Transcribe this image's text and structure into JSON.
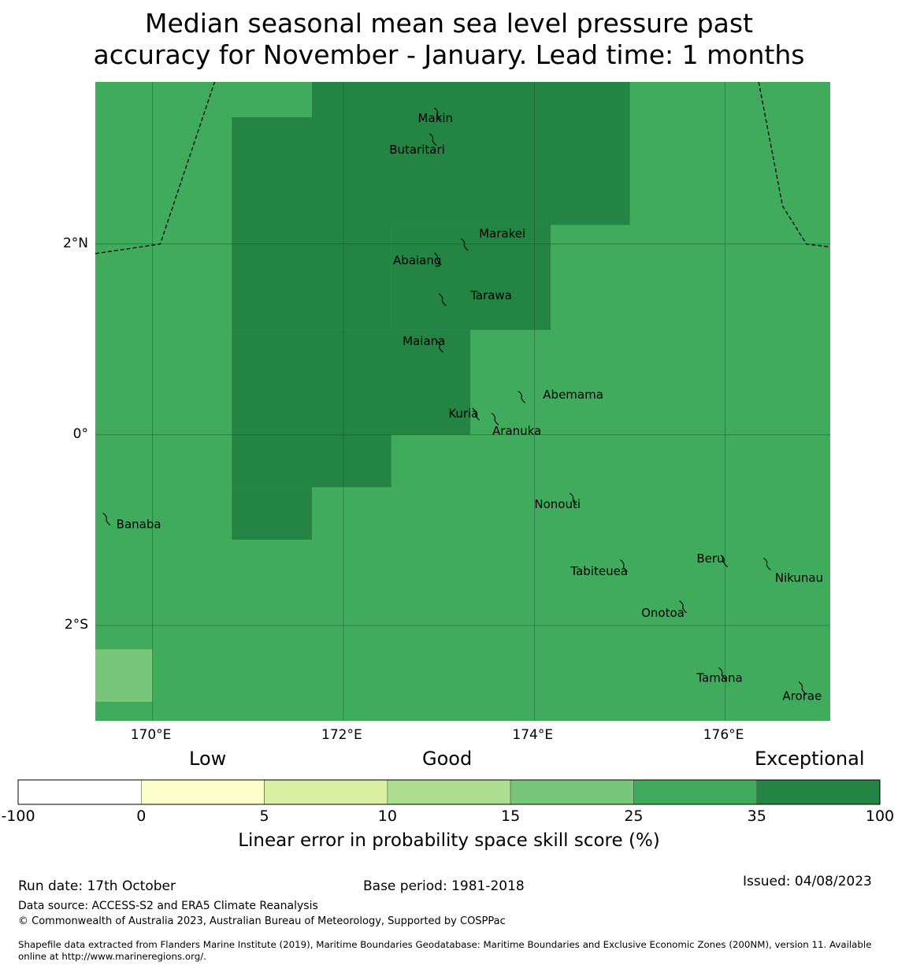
{
  "title": {
    "line1": "Median seasonal mean sea level pressure past",
    "line2": "accuracy for November - January. Lead time: 1 months"
  },
  "map": {
    "lon_range": [
      169.4,
      177.1
    ],
    "lat_range": [
      -3.0,
      3.7
    ],
    "lon_ticks": [
      170,
      172,
      174,
      176
    ],
    "lat_ticks": [
      2,
      0,
      -2
    ],
    "lon_tick_labels": [
      "170°E",
      "172°E",
      "174°E",
      "176°E"
    ],
    "lat_tick_labels": [
      "2°N",
      "0°",
      "2°S"
    ],
    "cell_scores": [
      {
        "lon": [
          169.4,
          177.1
        ],
        "lat": [
          -3.0,
          3.7
        ],
        "skill_pct": 30
      },
      {
        "lon": [
          170.83,
          172.5
        ],
        "lat": [
          1.1,
          3.33
        ],
        "skill_pct": 50
      },
      {
        "lon": [
          171.67,
          175.0
        ],
        "lat": [
          2.2,
          3.7
        ],
        "skill_pct": 50
      },
      {
        "lon": [
          172.5,
          174.17
        ],
        "lat": [
          1.1,
          2.2
        ],
        "skill_pct": 50
      },
      {
        "lon": [
          170.83,
          173.33
        ],
        "lat": [
          0.0,
          1.1
        ],
        "skill_pct": 50
      },
      {
        "lon": [
          170.83,
          172.5
        ],
        "lat": [
          -0.55,
          0.0
        ],
        "skill_pct": 50
      },
      {
        "lon": [
          170.83,
          171.67
        ],
        "lat": [
          -1.1,
          -0.55
        ],
        "skill_pct": 50
      },
      {
        "lon": [
          169.4,
          170.0
        ],
        "lat": [
          -2.8,
          -2.25
        ],
        "skill_pct": 20
      }
    ],
    "eez_boundaries": [
      [
        [
          169.4,
          1.9
        ],
        [
          170.08,
          2.0
        ],
        [
          170.65,
          3.7
        ]
      ],
      [
        [
          176.35,
          3.7
        ],
        [
          176.6,
          2.4
        ],
        [
          176.85,
          2.0
        ],
        [
          177.1,
          1.97
        ]
      ]
    ],
    "islands": [
      {
        "name": "Makin",
        "lon": 173.0,
        "lat": 3.37,
        "label_lon": 172.78,
        "label_lat": 3.32
      },
      {
        "name": "Butaritari",
        "lon": 172.95,
        "lat": 3.1,
        "label_lon": 172.48,
        "label_lat": 2.99
      },
      {
        "name": "Marakei",
        "lon": 173.28,
        "lat": 2.0,
        "label_lon": 173.42,
        "label_lat": 2.11
      },
      {
        "name": "Abaiang",
        "lon": 173.0,
        "lat": 1.85,
        "label_lon": 172.52,
        "label_lat": 1.83
      },
      {
        "name": "Tarawa",
        "lon": 173.05,
        "lat": 1.42,
        "label_lon": 173.33,
        "label_lat": 1.46
      },
      {
        "name": "Maiana",
        "lon": 173.02,
        "lat": 0.93,
        "label_lon": 172.62,
        "label_lat": 0.98
      },
      {
        "name": "Abemama",
        "lon": 173.88,
        "lat": 0.4,
        "label_lon": 174.09,
        "label_lat": 0.42
      },
      {
        "name": "Kuria",
        "lon": 173.4,
        "lat": 0.22,
        "label_lon": 173.1,
        "label_lat": 0.22
      },
      {
        "name": "Aranuka",
        "lon": 173.6,
        "lat": 0.17,
        "label_lon": 173.56,
        "label_lat": 0.04
      },
      {
        "name": "Nonouti",
        "lon": 174.42,
        "lat": -0.67,
        "label_lon": 174.0,
        "label_lat": -0.73
      },
      {
        "name": "Banaba",
        "lon": 169.53,
        "lat": -0.88,
        "label_lon": 169.62,
        "label_lat": -0.94
      },
      {
        "name": "Tabiteuea",
        "lon": 174.95,
        "lat": -1.37,
        "label_lon": 174.38,
        "label_lat": -1.43
      },
      {
        "name": "Beru",
        "lon": 176.0,
        "lat": -1.32,
        "label_lon": 175.7,
        "label_lat": -1.3
      },
      {
        "name": "Nikunau",
        "lon": 176.45,
        "lat": -1.35,
        "label_lon": 176.52,
        "label_lat": -1.5
      },
      {
        "name": "Onotoa",
        "lon": 175.57,
        "lat": -1.8,
        "label_lon": 175.12,
        "label_lat": -1.87
      },
      {
        "name": "Tamana",
        "lon": 175.98,
        "lat": -2.5,
        "label_lon": 175.7,
        "label_lat": -2.55
      },
      {
        "name": "Arorae",
        "lon": 176.82,
        "lat": -2.65,
        "label_lon": 176.6,
        "label_lat": -2.74
      }
    ]
  },
  "colorbar": {
    "categories": [
      "Low",
      "Good",
      "Exceptional"
    ],
    "bounds": [
      "-100",
      "0",
      "5",
      "10",
      "15",
      "25",
      "35",
      "100"
    ],
    "colors": [
      "#ffffff",
      "#ffffcc",
      "#d9f0a3",
      "#addd8e",
      "#78c679",
      "#41ab5d",
      "#238443"
    ],
    "label": "Linear error in probability space skill score (%)"
  },
  "footer": {
    "run_date": "Run date: 17th October",
    "base_period": "Base period: 1981-2018",
    "issued": "Issued: 04/08/2023",
    "data_source": "Data source: ACCESS-S2 and ERA5 Climate Reanalysis",
    "copyright": "© Commonwealth of Australia 2023, Australian Bureau of Meteorology, Supported by COSPPac",
    "shapefile_line1": "Shapefile data extracted from Flanders Marine Institute (2019), Maritime Boundaries Geodatabase: Maritime Boundaries and Exclusive Economic Zones (200NM), version 11. Available",
    "shapefile_line2": "online at http://www.marineregions.org/."
  }
}
